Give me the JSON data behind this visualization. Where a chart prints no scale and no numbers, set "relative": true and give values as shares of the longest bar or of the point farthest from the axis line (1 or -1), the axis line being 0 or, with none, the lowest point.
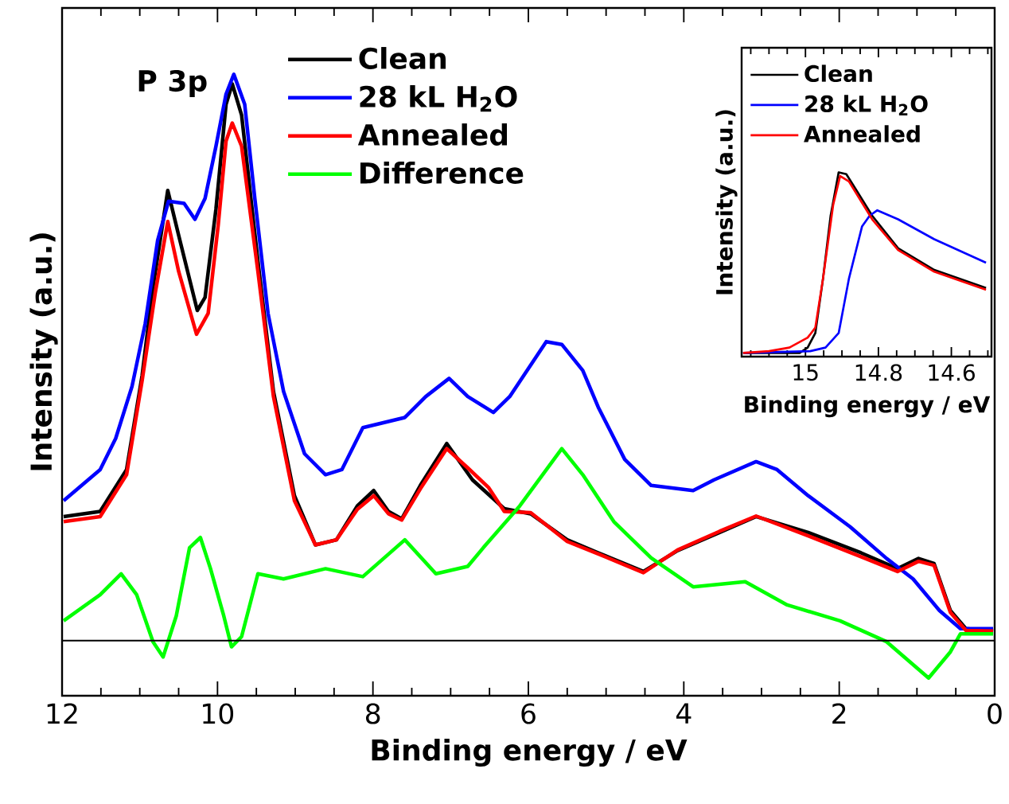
{
  "chart_data": [
    {
      "type": "line",
      "xlabel": "Binding energy / eV",
      "ylabel": "Intensity (a.u.)",
      "xlim": [
        12,
        0
      ],
      "xticks": [
        12,
        {
          "value": 11.5,
          "label": null
        },
        {
          "value": 11,
          "label": null
        },
        {
          "value": 10.5,
          "label": null
        },
        10,
        {
          "value": 9.5,
          "label": null
        },
        {
          "value": 9,
          "label": null
        },
        {
          "value": 8.5,
          "label": null
        },
        8,
        {
          "value": 7.5,
          "label": null
        },
        {
          "value": 7,
          "label": null
        },
        {
          "value": 6.5,
          "label": null
        },
        6,
        {
          "value": 5.5,
          "label": null
        },
        {
          "value": 5,
          "label": null
        },
        {
          "value": 4.5,
          "label": null
        },
        4,
        {
          "value": 3.5,
          "label": null
        },
        {
          "value": 3,
          "label": null
        },
        {
          "value": 2.5,
          "label": null
        },
        2,
        {
          "value": 1.5,
          "label": null
        },
        {
          "value": 1,
          "label": null
        },
        {
          "value": 0.5,
          "label": null
        },
        0
      ],
      "relative": true,
      "legend": "top",
      "annotations": [
        "P 3p"
      ],
      "series": [
        {
          "name": "Clean",
          "color": "#000000",
          "x": [
            11.98,
            11.51,
            11.17,
            10.97,
            10.83,
            10.64,
            10.5,
            10.26,
            10.16,
            10.02,
            9.89,
            9.81,
            9.69,
            9.48,
            9.28,
            9.01,
            8.74,
            8.47,
            8.2,
            7.99,
            7.8,
            7.63,
            7.39,
            7.05,
            6.72,
            6.31,
            5.97,
            5.5,
            5.1,
            4.52,
            4.08,
            3.54,
            3.07,
            2.4,
            1.72,
            1.25,
            0.98,
            0.78,
            0.57,
            0.37,
            0.02
          ],
          "values": [
            0.219,
            0.228,
            0.302,
            0.468,
            0.624,
            0.795,
            0.716,
            0.583,
            0.606,
            0.762,
            0.947,
            0.983,
            0.928,
            0.67,
            0.44,
            0.256,
            0.169,
            0.178,
            0.238,
            0.265,
            0.228,
            0.215,
            0.274,
            0.348,
            0.284,
            0.233,
            0.224,
            0.178,
            0.155,
            0.122,
            0.159,
            0.191,
            0.219,
            0.191,
            0.155,
            0.127,
            0.145,
            0.136,
            0.053,
            0.021,
            0.017
          ]
        },
        {
          "name": "28 kL H$_{2}$O",
          "color": "#0000ff",
          "x": [
            11.98,
            11.51,
            11.31,
            11.1,
            10.93,
            10.77,
            10.63,
            10.43,
            10.29,
            10.16,
            10.02,
            9.89,
            9.79,
            9.65,
            9.52,
            9.35,
            9.15,
            8.88,
            8.61,
            8.4,
            8.13,
            7.86,
            7.59,
            7.32,
            7.02,
            6.78,
            6.45,
            6.24,
            5.77,
            5.57,
            5.3,
            5.1,
            4.76,
            4.42,
            3.88,
            3.61,
            3.07,
            2.8,
            2.4,
            1.86,
            1.39,
            1.05,
            0.71,
            0.44,
            0.02
          ],
          "values": [
            0.247,
            0.302,
            0.357,
            0.449,
            0.56,
            0.707,
            0.776,
            0.772,
            0.744,
            0.781,
            0.873,
            0.965,
            1,
            0.947,
            0.781,
            0.578,
            0.44,
            0.33,
            0.293,
            0.302,
            0.376,
            0.385,
            0.394,
            0.431,
            0.463,
            0.431,
            0.403,
            0.431,
            0.528,
            0.523,
            0.477,
            0.412,
            0.32,
            0.274,
            0.265,
            0.284,
            0.316,
            0.302,
            0.256,
            0.201,
            0.145,
            0.109,
            0.053,
            0.021,
            0.021
          ]
        },
        {
          "name": "Annealed",
          "color": "#ff0000",
          "x": [
            11.98,
            11.51,
            11.17,
            10.97,
            10.8,
            10.64,
            10.5,
            10.27,
            10.12,
            9.99,
            9.89,
            9.81,
            9.69,
            9.48,
            9.28,
            9.01,
            8.74,
            8.47,
            8.2,
            7.99,
            7.8,
            7.63,
            7.39,
            7.05,
            6.78,
            6.51,
            6.31,
            5.97,
            5.5,
            5.1,
            4.52,
            4.08,
            3.54,
            3.07,
            2.4,
            1.72,
            1.25,
            0.98,
            0.78,
            0.57,
            0.37,
            0.02
          ],
          "values": [
            0.21,
            0.219,
            0.293,
            0.459,
            0.615,
            0.74,
            0.652,
            0.541,
            0.578,
            0.735,
            0.882,
            0.914,
            0.873,
            0.652,
            0.431,
            0.247,
            0.169,
            0.178,
            0.232,
            0.256,
            0.224,
            0.213,
            0.268,
            0.339,
            0.305,
            0.27,
            0.228,
            0.226,
            0.175,
            0.153,
            0.12,
            0.16,
            0.193,
            0.22,
            0.185,
            0.148,
            0.122,
            0.14,
            0.133,
            0.05,
            0.018,
            0.017
          ]
        },
        {
          "name": "Difference",
          "color": "#00ff00",
          "x": [
            11.98,
            11.51,
            11.24,
            11.04,
            10.83,
            10.7,
            10.53,
            10.36,
            10.22,
            10.09,
            9.92,
            9.82,
            9.69,
            9.48,
            9.15,
            8.61,
            8.13,
            7.59,
            7.19,
            6.78,
            6.58,
            6.11,
            5.57,
            5.3,
            4.9,
            4.42,
            3.88,
            3.21,
            2.67,
            1.99,
            1.39,
            0.85,
            0.57,
            0.44,
            0.02
          ],
          "values": [
            0.035,
            0.081,
            0.118,
            0.081,
            -0.002,
            -0.029,
            0.044,
            0.164,
            0.182,
            0.127,
            0.044,
            -0.011,
            0.007,
            0.118,
            0.109,
            0.127,
            0.113,
            0.178,
            0.118,
            0.131,
            0.164,
            0.238,
            0.339,
            0.293,
            0.21,
            0.146,
            0.095,
            0.104,
            0.063,
            0.035,
            -0.002,
            -0.066,
            -0.02,
            0.012,
            0.012
          ]
        }
      ]
    },
    {
      "type": "line",
      "xlabel": "Binding energy / eV",
      "ylabel": "Intensity (a.u.)",
      "xlim": [
        15.175,
        14.49
      ],
      "xticks": [
        {
          "value": 15.15,
          "label": null
        },
        {
          "value": 15.1,
          "label": null
        },
        {
          "value": 15.05,
          "label": null
        },
        15,
        {
          "value": 14.95,
          "label": null
        },
        {
          "value": 14.9,
          "label": null
        },
        {
          "value": 14.85,
          "label": null
        },
        14.8,
        {
          "value": 14.75,
          "label": null
        },
        {
          "value": 14.7,
          "label": null
        },
        {
          "value": 14.65,
          "label": null
        },
        14.6,
        {
          "value": 14.55,
          "label": null
        },
        {
          "value": 14.5,
          "label": null
        }
      ],
      "relative": true,
      "legend": "top left",
      "series": [
        {
          "name": "Clean",
          "color": "#000000",
          "x": [
            15.171,
            15.016,
            14.994,
            14.973,
            14.952,
            14.931,
            14.909,
            14.888,
            14.86,
            14.817,
            14.746,
            14.647,
            14.505
          ],
          "values": [
            0,
            0,
            0.03,
            0.11,
            0.41,
            0.76,
            1.0,
            0.99,
            0.9,
            0.76,
            0.58,
            0.46,
            0.36
          ]
        },
        {
          "name": "28 kL H$_{2}$O",
          "color": "#0000ff",
          "x": [
            15.171,
            14.987,
            14.945,
            14.909,
            14.881,
            14.845,
            14.824,
            14.803,
            14.746,
            14.647,
            14.505
          ],
          "values": [
            0,
            0.01,
            0.03,
            0.11,
            0.41,
            0.7,
            0.76,
            0.79,
            0.74,
            0.63,
            0.5
          ]
        },
        {
          "name": "Annealed",
          "color": "#ff0000",
          "x": [
            15.171,
            15.1,
            15.044,
            14.994,
            14.973,
            14.952,
            14.924,
            14.905,
            14.881,
            14.817,
            14.746,
            14.647,
            14.505
          ],
          "values": [
            0,
            0.01,
            0.03,
            0.085,
            0.14,
            0.41,
            0.82,
            0.98,
            0.95,
            0.74,
            0.57,
            0.45,
            0.35
          ]
        }
      ]
    }
  ]
}
